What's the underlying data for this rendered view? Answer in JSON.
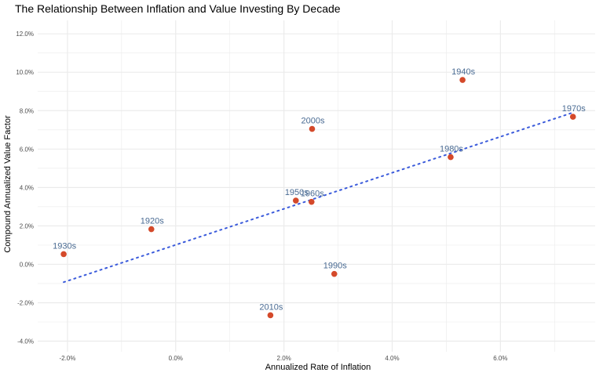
{
  "chart_data": {
    "type": "scatter",
    "title": "The Relationship Between Inflation and Value Investing By Decade",
    "xlabel": "Annualized Rate of Inflation",
    "ylabel": "Compound Annualized Value Factor",
    "xlim": [
      -0.0255,
      0.0775
    ],
    "ylim": [
      -0.0455,
      0.127
    ],
    "x_ticks": [
      -0.02,
      0.0,
      0.02,
      0.04,
      0.06
    ],
    "x_tick_labels": [
      "-2.0%",
      "0.0%",
      "2.0%",
      "4.0%",
      "6.0%"
    ],
    "y_ticks": [
      -0.04,
      -0.02,
      0.0,
      0.02,
      0.04,
      0.06,
      0.08,
      0.1,
      0.12
    ],
    "y_tick_labels": [
      "-4.0%",
      "-2.0%",
      "0.0%",
      "2.0%",
      "4.0%",
      "6.0%",
      "8.0%",
      "10.0%",
      "12.0%"
    ],
    "grid": true,
    "points": [
      {
        "label": "1920s",
        "x": -0.0045,
        "y": 0.0183
      },
      {
        "label": "1930s",
        "x": -0.0207,
        "y": 0.0053
      },
      {
        "label": "1940s",
        "x": 0.053,
        "y": 0.096
      },
      {
        "label": "1950s",
        "x": 0.0222,
        "y": 0.0332
      },
      {
        "label": "1960s",
        "x": 0.0251,
        "y": 0.0325
      },
      {
        "label": "1970s",
        "x": 0.0734,
        "y": 0.0768
      },
      {
        "label": "1980s",
        "x": 0.0508,
        "y": 0.0558
      },
      {
        "label": "1990s",
        "x": 0.0293,
        "y": -0.005
      },
      {
        "label": "2000s",
        "x": 0.0252,
        "y": 0.0705
      },
      {
        "label": "2010s",
        "x": 0.0175,
        "y": -0.0265
      }
    ],
    "trend_line": {
      "x": [
        -0.0207,
        0.0734
      ],
      "y": [
        -0.0093,
        0.079
      ],
      "style": "dotted"
    },
    "colors": {
      "points": "#d4492a",
      "trend": "#3b5bdb",
      "labels": "#4a6b93",
      "grid": "#ebebeb"
    }
  }
}
